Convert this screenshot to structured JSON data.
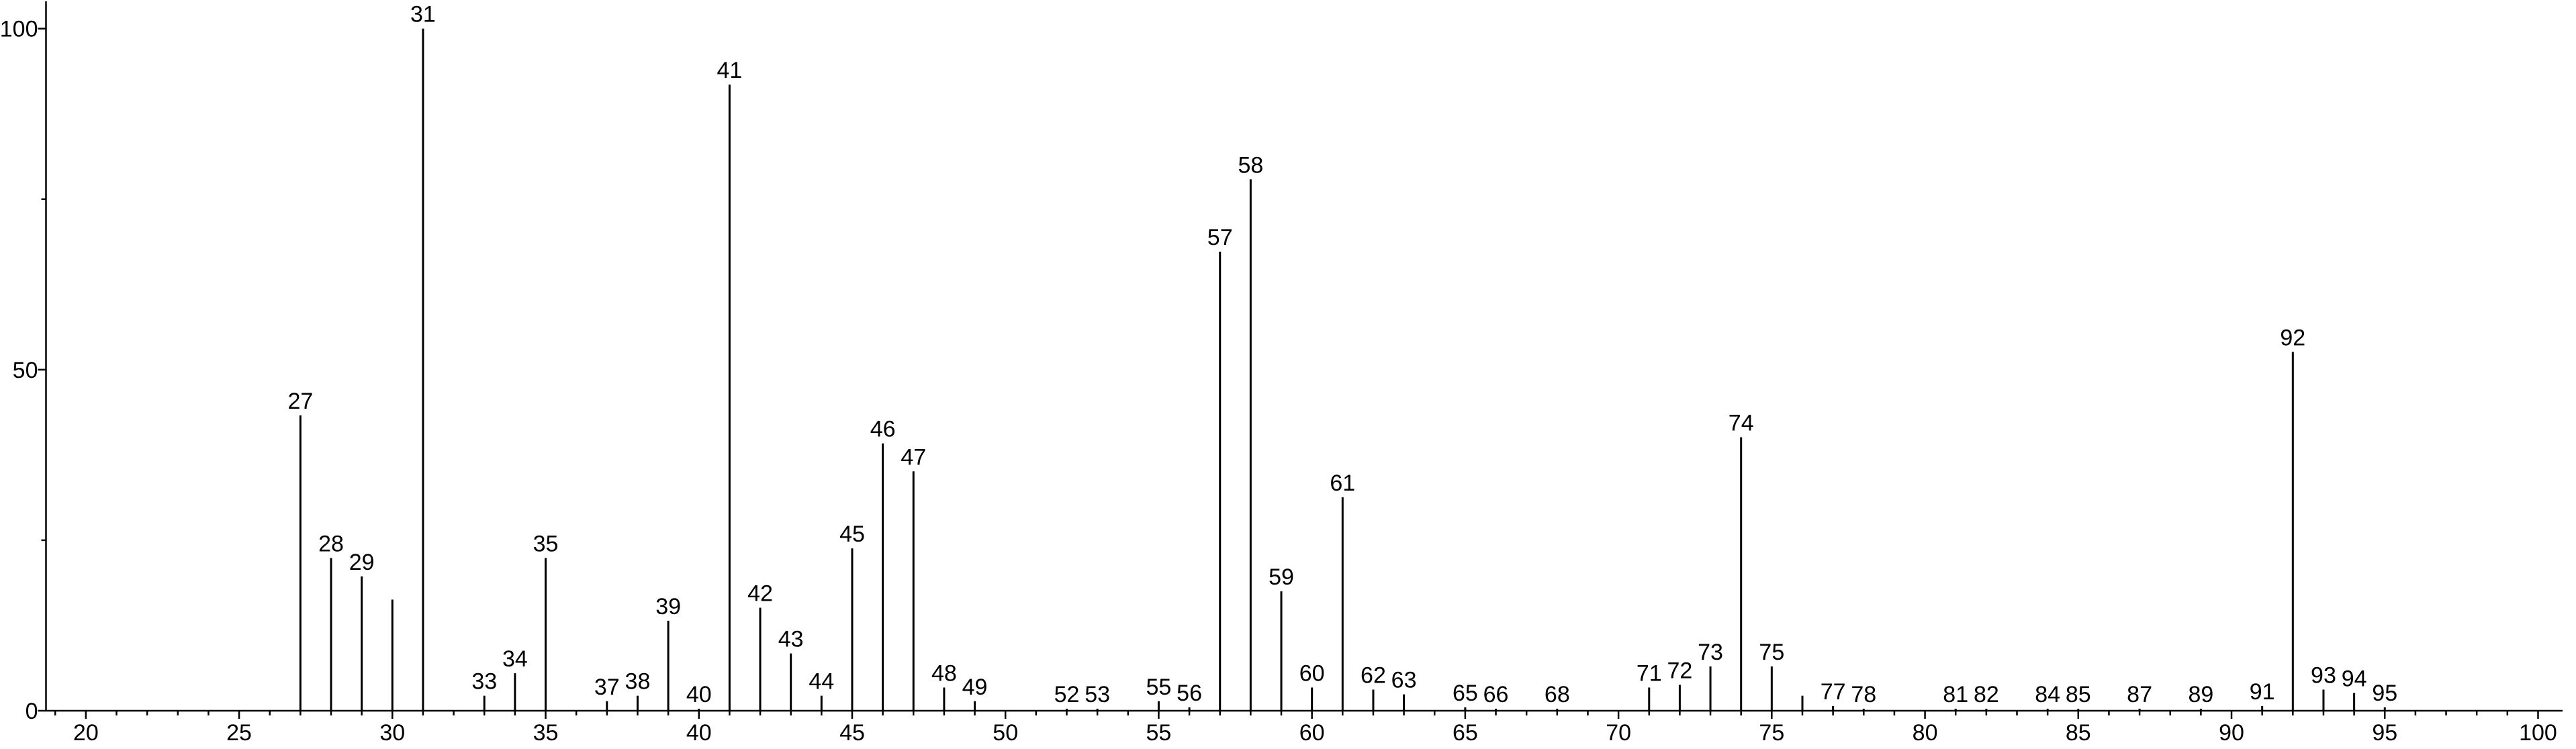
{
  "chart_data": {
    "type": "stem",
    "x": [
      27,
      28,
      29,
      30,
      31,
      33,
      34,
      35,
      37,
      38,
      39,
      40,
      41,
      42,
      43,
      44,
      45,
      46,
      47,
      48,
      49,
      52,
      53,
      55,
      56,
      57,
      58,
      59,
      60,
      61,
      62,
      63,
      65,
      66,
      68,
      71,
      72,
      73,
      74,
      75,
      76,
      77,
      78,
      81,
      82,
      84,
      85,
      87,
      89,
      91,
      92,
      93,
      94,
      95
    ],
    "values": [
      43.3,
      22.4,
      19.7,
      16.3,
      100,
      2.2,
      5.5,
      22.4,
      1.4,
      2.2,
      13.2,
      0.3,
      91.8,
      15.1,
      8.4,
      2.2,
      23.8,
      39.2,
      35.1,
      3.4,
      1.4,
      0.3,
      0.3,
      1.4,
      0.5,
      67.3,
      77.9,
      17.5,
      3.4,
      31.3,
      3.1,
      2.4,
      0.5,
      0.3,
      0.3,
      3.4,
      3.8,
      6.5,
      40.1,
      6.5,
      2.2,
      0.7,
      0.3,
      0.3,
      0.3,
      0.3,
      0.3,
      0.3,
      0.3,
      0.7,
      52.6,
      3.1,
      2.6,
      0.5
    ],
    "peak_labels": [
      "27",
      "28",
      "29",
      null,
      "31",
      "33",
      "34",
      "35",
      "37",
      "38",
      "39",
      "40",
      "41",
      "42",
      "43",
      "44",
      "45",
      "46",
      "47",
      "48",
      "49",
      "52",
      "53",
      "55",
      "56",
      "57",
      "58",
      "59",
      "60",
      "61",
      "62",
      "63",
      "65",
      "66",
      "68",
      "71",
      "72",
      "73",
      "74",
      "75",
      null,
      "77",
      "78",
      "81",
      "82",
      "84",
      "85",
      "87",
      "89",
      "91",
      "92",
      "93",
      "94",
      "95"
    ],
    "color": "#000000",
    "xlim": [
      18.7,
      100.8
    ],
    "xticks": [
      20,
      25,
      30,
      35,
      40,
      45,
      50,
      55,
      60,
      65,
      70,
      75,
      80,
      85,
      90,
      95,
      100
    ],
    "xminorticks": [
      19,
      21,
      22,
      23,
      24,
      26,
      27,
      28,
      29,
      31,
      32,
      33,
      34,
      36,
      37,
      38,
      39,
      41,
      42,
      43,
      44,
      46,
      47,
      48,
      49,
      51,
      52,
      53,
      54,
      56,
      57,
      58,
      59,
      61,
      62,
      63,
      64,
      66,
      67,
      68,
      69,
      71,
      72,
      73,
      74,
      76,
      77,
      78,
      79,
      81,
      82,
      83,
      84,
      86,
      87,
      88,
      89,
      91,
      92,
      93,
      94,
      96,
      97,
      98,
      99
    ],
    "ylim": [
      0,
      104
    ],
    "yticks": [
      0,
      50,
      100
    ],
    "yminorticks": [
      25,
      75
    ]
  }
}
